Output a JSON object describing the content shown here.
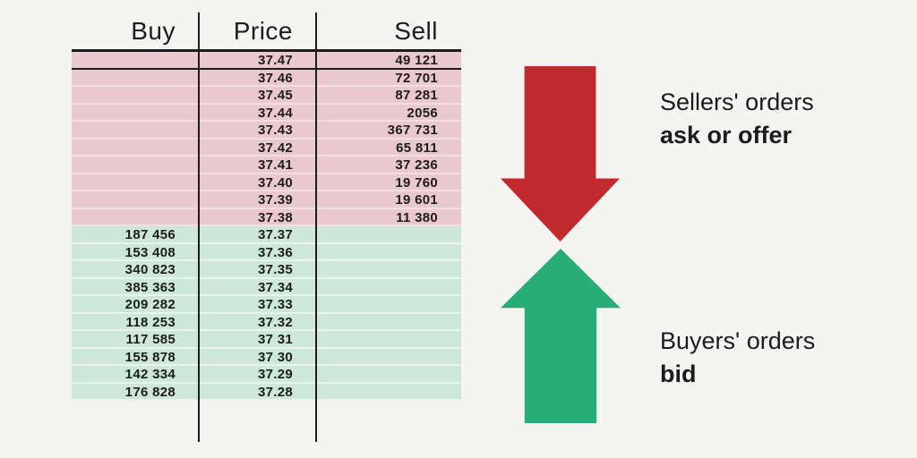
{
  "table": {
    "headers": {
      "buy": "Buy",
      "price": "Price",
      "sell": "Sell"
    },
    "rows": [
      {
        "buy": "",
        "price": "37.47",
        "sell": "49 121",
        "side": "sell"
      },
      {
        "buy": "",
        "price": "37.46",
        "sell": "72 701",
        "side": "sell"
      },
      {
        "buy": "",
        "price": "37.45",
        "sell": "87 281",
        "side": "sell"
      },
      {
        "buy": "",
        "price": "37.44",
        "sell": "2056",
        "side": "sell"
      },
      {
        "buy": "",
        "price": "37.43",
        "sell": "367 731",
        "side": "sell"
      },
      {
        "buy": "",
        "price": "37.42",
        "sell": "65 811",
        "side": "sell"
      },
      {
        "buy": "",
        "price": "37.41",
        "sell": "37 236",
        "side": "sell"
      },
      {
        "buy": "",
        "price": "37.40",
        "sell": "19 760",
        "side": "sell"
      },
      {
        "buy": "",
        "price": "37.39",
        "sell": "19 601",
        "side": "sell"
      },
      {
        "buy": "",
        "price": "37.38",
        "sell": "11 380",
        "side": "sell"
      },
      {
        "buy": "187 456",
        "price": "37.37",
        "sell": "",
        "side": "buy"
      },
      {
        "buy": "153 408",
        "price": "37.36",
        "sell": "",
        "side": "buy"
      },
      {
        "buy": "340 823",
        "price": "37.35",
        "sell": "",
        "side": "buy"
      },
      {
        "buy": "385 363",
        "price": "37.34",
        "sell": "",
        "side": "buy"
      },
      {
        "buy": "209 282",
        "price": "37.33",
        "sell": "",
        "side": "buy"
      },
      {
        "buy": "118 253",
        "price": "37.32",
        "sell": "",
        "side": "buy"
      },
      {
        "buy": "117 585",
        "price": "37 31",
        "sell": "",
        "side": "buy"
      },
      {
        "buy": "155 878",
        "price": "37 30",
        "sell": "",
        "side": "buy"
      },
      {
        "buy": "142 334",
        "price": "37.29",
        "sell": "",
        "side": "buy"
      },
      {
        "buy": "176 828",
        "price": "37.28",
        "sell": "",
        "side": "buy"
      }
    ]
  },
  "annotations": {
    "sellers": {
      "line1": "Sellers' orders",
      "line2": "ask or offer",
      "icon": "down-arrow"
    },
    "buyers": {
      "line1": "Buyers' orders",
      "line2": "bid",
      "icon": "up-arrow"
    }
  },
  "colors": {
    "page_bg": "#F4F4F3",
    "sell_row_bg": "#EAC9CE",
    "buy_row_bg": "#CDE7DB",
    "sell_separator": "#F3DFE2",
    "buy_separator": "#E8F4EE",
    "red_arrow": "#C1292E",
    "green_arrow": "#27AE74",
    "text": "#1C1C1C"
  }
}
